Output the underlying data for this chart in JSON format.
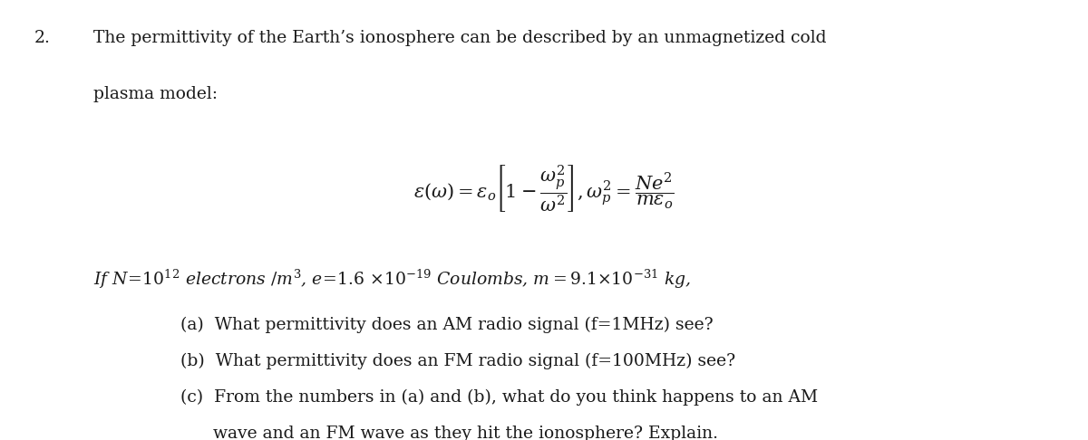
{
  "background_color": "#ffffff",
  "text_color": "#1a1a1a",
  "fig_width": 12.0,
  "fig_height": 4.86,
  "dpi": 100,
  "number_text": "2.",
  "line1": "The permittivity of the Earth’s ionosphere can be described by an unmagnetized cold",
  "line2": "plasma model:",
  "equation": "$\\varepsilon(\\omega) = \\varepsilon_o\\left[1 - \\dfrac{\\omega_p^2}{\\omega^2}\\right], \\omega_p^2 = \\dfrac{Ne^2}{m\\varepsilon_o}$",
  "params_line": "If $N\\!=\\!10^{12}$ electrons $/m^3$, $e\\!=\\!1.6\\ {\\times}10^{-19}$ Coulombs, $m = 9.1{\\times}10^{-31}$ kg,",
  "part_a": "(a)  What permittivity does an AM radio signal (f=1MHz) see?",
  "part_b": "(b)  What permittivity does an FM radio signal (f=100MHz) see?",
  "part_c1": "(c)  From the numbers in (a) and (b), what do you think happens to an AM",
  "part_c2": "      wave and an FM wave as they hit the ionosphere? Explain.",
  "fontsize_main": 13.5,
  "fontsize_eq": 15,
  "fontfamily": "serif"
}
